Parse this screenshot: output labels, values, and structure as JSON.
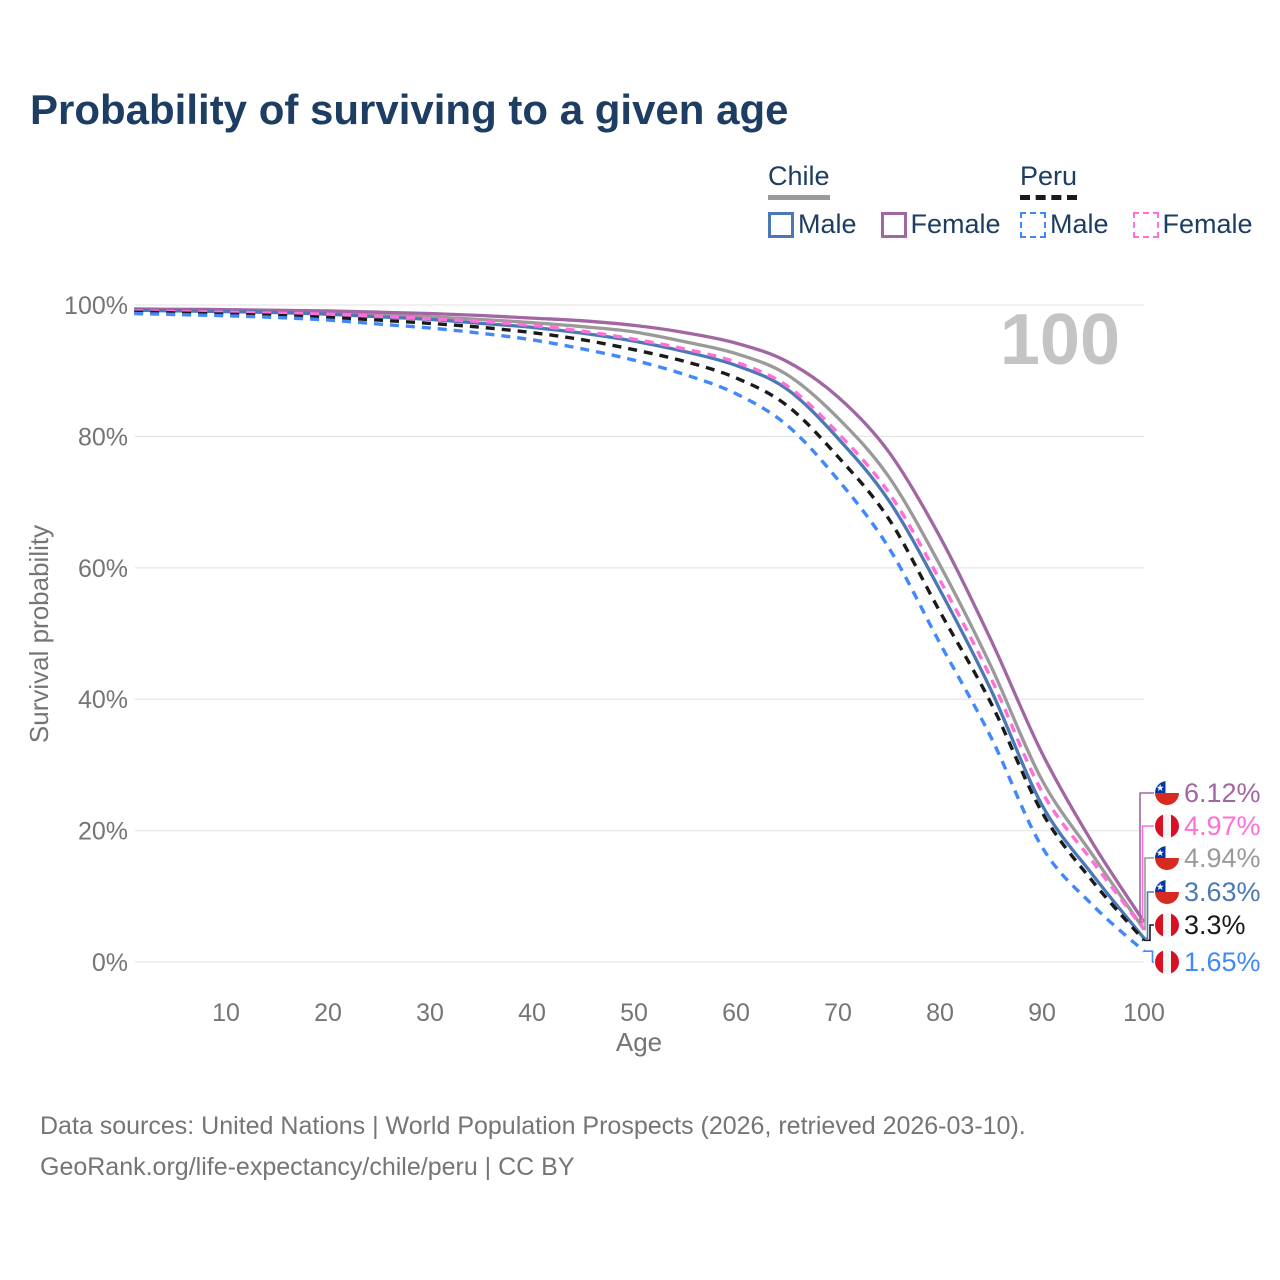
{
  "page": {
    "title": "Probability of surviving to a given age",
    "watermark": "100"
  },
  "colors": {
    "title": "#1d3d63",
    "axis_text": "#757575",
    "grid": "#e7e7e7",
    "watermark": "#c4c4c4"
  },
  "legend": {
    "groups": [
      {
        "country": "Chile",
        "line_style": "solid",
        "line_color": "#9a9a9a",
        "items": [
          {
            "label": "Male",
            "color": "#4a79b5",
            "dashed": false
          },
          {
            "label": "Female",
            "color": "#a266a3",
            "dashed": false
          }
        ]
      },
      {
        "country": "Peru",
        "line_style": "dashed",
        "line_color": "#1a1a1a",
        "items": [
          {
            "label": "Male",
            "color": "#4189fa",
            "dashed": true
          },
          {
            "label": "Female",
            "color": "#ff6fd8",
            "dashed": true
          }
        ]
      }
    ]
  },
  "chart_data": {
    "type": "line",
    "title": "Probability of surviving to a given age",
    "xlabel": "Age",
    "ylabel": "Survival probability",
    "xlim": [
      0,
      100
    ],
    "ylim": [
      0,
      100
    ],
    "x_ticks": [
      10,
      20,
      30,
      40,
      50,
      60,
      70,
      80,
      90,
      100
    ],
    "y_ticks": [
      0,
      20,
      40,
      60,
      80,
      100
    ],
    "y_tick_suffix": "%",
    "grid": true,
    "legend_position": "top-right",
    "watermark": "100",
    "ages": [
      1,
      5,
      10,
      15,
      20,
      25,
      30,
      35,
      40,
      45,
      50,
      55,
      60,
      65,
      70,
      75,
      80,
      85,
      90,
      95,
      100
    ],
    "series": [
      {
        "name": "Chile Female",
        "country": "Chile",
        "sex": "Female",
        "color": "#a266a3",
        "dash": false,
        "end_label": "6.12%",
        "values": [
          99.4,
          99.35,
          99.3,
          99.2,
          99.1,
          98.9,
          98.7,
          98.4,
          98.0,
          97.6,
          96.9,
          95.8,
          94.2,
          91.4,
          86.0,
          77.6,
          64.7,
          49.0,
          31.8,
          18.0,
          6.12
        ]
      },
      {
        "name": "Peru Female",
        "country": "Peru",
        "sex": "Female",
        "color": "#ff6fd8",
        "dash": true,
        "end_label": "4.97%",
        "values": [
          99.1,
          99.0,
          98.9,
          98.75,
          98.6,
          98.3,
          97.9,
          97.5,
          96.9,
          96.0,
          94.8,
          93.3,
          91.3,
          87.7,
          80.5,
          71.4,
          58.1,
          43.2,
          25.9,
          15.2,
          4.97
        ]
      },
      {
        "name": "Chile",
        "country": "Chile",
        "sex": "Both",
        "color": "#9a9a9a",
        "dash": false,
        "end_label": "4.94%",
        "values": [
          99.3,
          99.25,
          99.15,
          99.0,
          98.8,
          98.5,
          98.2,
          97.8,
          97.3,
          96.7,
          95.9,
          94.4,
          92.6,
          89.4,
          82.8,
          73.8,
          60.4,
          45.0,
          27.7,
          16.2,
          4.94
        ]
      },
      {
        "name": "Chile Male",
        "country": "Chile",
        "sex": "Male",
        "color": "#4a79b5",
        "dash": false,
        "end_label": "3.63%",
        "values": [
          99.2,
          99.1,
          99.0,
          98.85,
          98.6,
          98.2,
          97.8,
          97.2,
          96.6,
          95.7,
          94.5,
          92.9,
          90.8,
          87.2,
          79.7,
          70.2,
          56.6,
          41.4,
          23.9,
          13.2,
          3.63
        ]
      },
      {
        "name": "Peru",
        "country": "Peru",
        "sex": "Both",
        "color": "#1a1a1a",
        "dash": true,
        "end_label": "3.3%",
        "values": [
          98.9,
          98.8,
          98.6,
          98.4,
          98.1,
          97.7,
          97.2,
          96.6,
          95.8,
          94.7,
          93.2,
          91.4,
          88.9,
          84.7,
          76.9,
          67.4,
          53.3,
          39.4,
          22.8,
          12.2,
          3.3
        ]
      },
      {
        "name": "Peru Male",
        "country": "Peru",
        "sex": "Male",
        "color": "#4189fa",
        "dash": true,
        "end_label": "1.65%",
        "values": [
          98.7,
          98.55,
          98.35,
          98.1,
          97.7,
          97.1,
          96.5,
          95.7,
          94.7,
          93.3,
          91.6,
          89.4,
          86.5,
          81.7,
          73.4,
          63.0,
          48.5,
          34.2,
          17.5,
          8.6,
          1.65
        ]
      }
    ]
  },
  "flags": {
    "chile": {
      "blue": "#0437a0",
      "red": "#d72b1f",
      "white": "#ffffff"
    },
    "peru": {
      "red": "#d91023",
      "white": "#f4f4f4"
    }
  },
  "footer": {
    "line1": "Data sources: United Nations | World Population Prospects (2026, retrieved 2026-03-10).",
    "line2": "GeoRank.org/life-expectancy/chile/peru | CC BY"
  }
}
